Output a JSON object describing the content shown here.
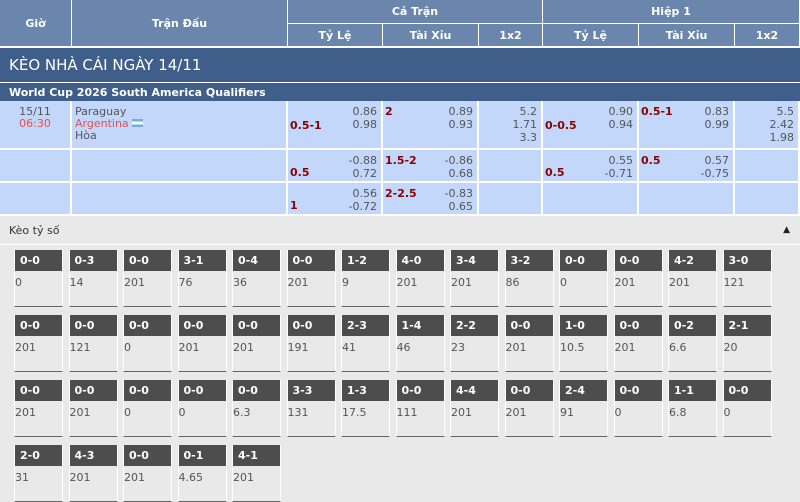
{
  "header": {
    "time": "Giờ",
    "match": "Trận Đấu",
    "full": "Cả Trận",
    "half": "Hiệp 1",
    "hdp": "Tỷ Lệ",
    "ou": "Tài Xỉu",
    "x12": "1x2"
  },
  "title": "KÈO NHÀ CÁI NGÀY 14/11",
  "league": "World Cup 2026 South America Qualifiers",
  "match": {
    "date": "15/11",
    "time": "06:30",
    "home": "Paraguay",
    "away": "Argentina",
    "draw": "Hòa",
    "flag_icon": "argentina-flag"
  },
  "rows": [
    {
      "ft_hdp": "0.5-1",
      "ft_hdp_o": [
        "0.86",
        "0.98"
      ],
      "ft_ou": "2",
      "ft_ou_o": [
        "0.89",
        "0.93"
      ],
      "ft_1x2": [
        "5.2",
        "1.71",
        "3.3"
      ],
      "h1_hdp": "0-0.5",
      "h1_hdp_o": [
        "0.90",
        "0.94"
      ],
      "h1_ou": "0.5-1",
      "h1_ou_o": [
        "0.83",
        "0.99"
      ],
      "h1_1x2": [
        "5.5",
        "2.42",
        "1.98"
      ]
    },
    {
      "ft_hdp": "0.5",
      "ft_hdp_o": [
        "-0.88",
        "0.72"
      ],
      "ft_ou": "1.5-2",
      "ft_ou_o": [
        "-0.86",
        "0.68"
      ],
      "ft_1x2": [],
      "h1_hdp": "0.5",
      "h1_hdp_o": [
        "0.55",
        "-0.71"
      ],
      "h1_ou": "0.5",
      "h1_ou_o": [
        "0.57",
        "-0.75"
      ],
      "h1_1x2": []
    },
    {
      "ft_hdp": "1",
      "ft_hdp_o": [
        "0.56",
        "-0.72"
      ],
      "ft_ou": "2-2.5",
      "ft_ou_o": [
        "-0.83",
        "0.65"
      ],
      "ft_1x2": [],
      "h1_hdp": "",
      "h1_hdp_o": [],
      "h1_ou": "",
      "h1_ou_o": [],
      "h1_1x2": []
    }
  ],
  "score_section": {
    "label": "Kèo tỷ số",
    "toggle_icon": "triangle-up"
  },
  "scores": [
    [
      [
        "0-0",
        "0"
      ],
      [
        "0-3",
        "14"
      ],
      [
        "0-0",
        "201"
      ],
      [
        "3-1",
        "76"
      ],
      [
        "0-4",
        "36"
      ],
      [
        "0-0",
        "201"
      ],
      [
        "1-2",
        "9"
      ],
      [
        "4-0",
        "201"
      ],
      [
        "3-4",
        "201"
      ],
      [
        "3-2",
        "86"
      ],
      [
        "0-0",
        "0"
      ],
      [
        "0-0",
        "201"
      ],
      [
        "4-2",
        "201"
      ],
      [
        "3-0",
        "121"
      ]
    ],
    [
      [
        "0-0",
        "201"
      ],
      [
        "0-0",
        "121"
      ],
      [
        "0-0",
        "0"
      ],
      [
        "0-0",
        "201"
      ],
      [
        "0-0",
        "201"
      ],
      [
        "0-0",
        "191"
      ],
      [
        "2-3",
        "41"
      ],
      [
        "1-4",
        "46"
      ],
      [
        "2-2",
        "23"
      ],
      [
        "0-0",
        "201"
      ],
      [
        "1-0",
        "10.5"
      ],
      [
        "0-0",
        "201"
      ],
      [
        "0-2",
        "6.6"
      ],
      [
        "2-1",
        "20"
      ]
    ],
    [
      [
        "0-0",
        "201"
      ],
      [
        "0-0",
        "201"
      ],
      [
        "0-0",
        "0"
      ],
      [
        "0-0",
        "0"
      ],
      [
        "0-0",
        "6.3"
      ],
      [
        "3-3",
        "131"
      ],
      [
        "1-3",
        "17.5"
      ],
      [
        "0-0",
        "111"
      ],
      [
        "4-4",
        "201"
      ],
      [
        "0-0",
        "201"
      ],
      [
        "2-4",
        "91"
      ],
      [
        "0-0",
        "0"
      ],
      [
        "1-1",
        "6.8"
      ],
      [
        "0-0",
        "0"
      ]
    ],
    [
      [
        "2-0",
        "31"
      ],
      [
        "4-3",
        "201"
      ],
      [
        "0-0",
        "201"
      ],
      [
        "0-1",
        "4.65"
      ],
      [
        "4-1",
        "201"
      ]
    ]
  ]
}
